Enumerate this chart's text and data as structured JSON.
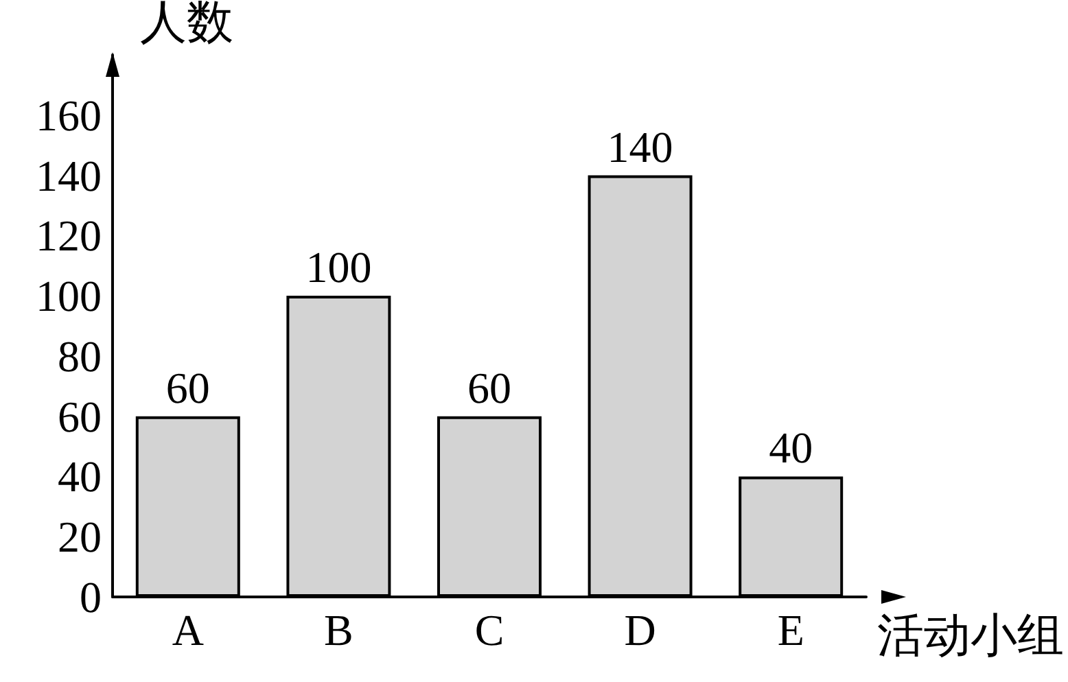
{
  "chart_data": {
    "type": "bar",
    "ylabel": "人数",
    "xlabel": "活动小组",
    "categories": [
      "A",
      "B",
      "C",
      "D",
      "E"
    ],
    "values": [
      60,
      100,
      60,
      140,
      40
    ],
    "color": "#d3d3d3",
    "ylim": [
      0,
      180
    ],
    "yticks": [
      0,
      20,
      40,
      60,
      80,
      100,
      120,
      140,
      160
    ],
    "data_labels": true,
    "grid": false
  }
}
